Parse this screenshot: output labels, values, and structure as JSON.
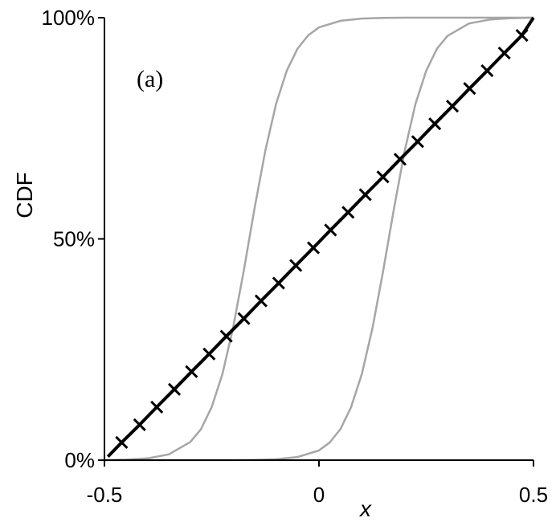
{
  "chart_data": {
    "type": "line",
    "annotation": "(a)",
    "xlabel": "x",
    "ylabel": "CDF",
    "xlim": [
      -0.5,
      0.5
    ],
    "ylim": [
      0,
      100
    ],
    "x_ticks": [
      -0.5,
      0,
      0.5
    ],
    "x_tick_labels": [
      "-0.5",
      "0",
      "0.5"
    ],
    "y_ticks": [
      0,
      50,
      100
    ],
    "y_tick_labels": [
      "0%",
      "50%",
      "100%"
    ],
    "grid": false,
    "legend": "none",
    "series": [
      {
        "color": "#000000",
        "marker": "cross",
        "x": [
          -0.492,
          -0.46,
          -0.418,
          -0.378,
          -0.337,
          -0.297,
          -0.256,
          -0.216,
          -0.175,
          -0.135,
          -0.094,
          -0.054,
          -0.013,
          0.027,
          0.068,
          0.108,
          0.149,
          0.189,
          0.23,
          0.27,
          0.311,
          0.351,
          0.392,
          0.432,
          0.473,
          0.5
        ],
        "y": [
          0.8,
          4,
          8,
          12,
          16,
          20,
          24,
          28,
          32,
          36,
          40,
          44,
          48,
          52,
          56,
          60,
          64,
          68,
          72,
          76,
          80,
          84,
          88,
          92,
          96,
          100
        ],
        "marker_x": [
          -0.46,
          -0.418,
          -0.378,
          -0.337,
          -0.297,
          -0.256,
          -0.216,
          -0.175,
          -0.135,
          -0.094,
          -0.054,
          -0.013,
          0.027,
          0.068,
          0.108,
          0.149,
          0.189,
          0.23,
          0.27,
          0.311,
          0.351,
          0.392,
          0.432,
          0.473
        ],
        "marker_y": [
          4,
          8,
          12,
          16,
          20,
          24,
          28,
          32,
          36,
          40,
          44,
          48,
          52,
          56,
          60,
          64,
          68,
          72,
          76,
          80,
          84,
          88,
          92,
          96
        ]
      },
      {
        "color": "#a6a6a6",
        "x": [
          -0.5,
          -0.45,
          -0.4,
          -0.35,
          -0.3,
          -0.275,
          -0.25,
          -0.225,
          -0.2,
          -0.175,
          -0.15,
          -0.125,
          -0.1,
          -0.075,
          -0.05,
          -0.025,
          0,
          0.05,
          0.1,
          0.15,
          0.2,
          0.3,
          0.4,
          0.5
        ],
        "y": [
          0,
          0.1,
          0.4,
          1.3,
          4.1,
          7,
          12,
          19.5,
          30,
          43,
          57,
          70,
          80.5,
          88,
          93,
          96,
          97.8,
          99.3,
          99.8,
          99.95,
          100,
          100,
          100,
          100
        ]
      },
      {
        "color": "#a6a6a6",
        "x": [
          -0.5,
          -0.4,
          -0.3,
          -0.2,
          -0.15,
          -0.1,
          -0.05,
          0,
          0.025,
          0.05,
          0.075,
          0.1,
          0.125,
          0.15,
          0.175,
          0.2,
          0.225,
          0.25,
          0.275,
          0.3,
          0.35,
          0.4,
          0.45,
          0.5
        ],
        "y": [
          0,
          0,
          0,
          0,
          0.05,
          0.2,
          0.7,
          2.2,
          4,
          7,
          12,
          19.5,
          30,
          43,
          57,
          70,
          80.5,
          88,
          93,
          95.9,
          98.7,
          99.6,
          99.9,
          100
        ]
      }
    ]
  }
}
